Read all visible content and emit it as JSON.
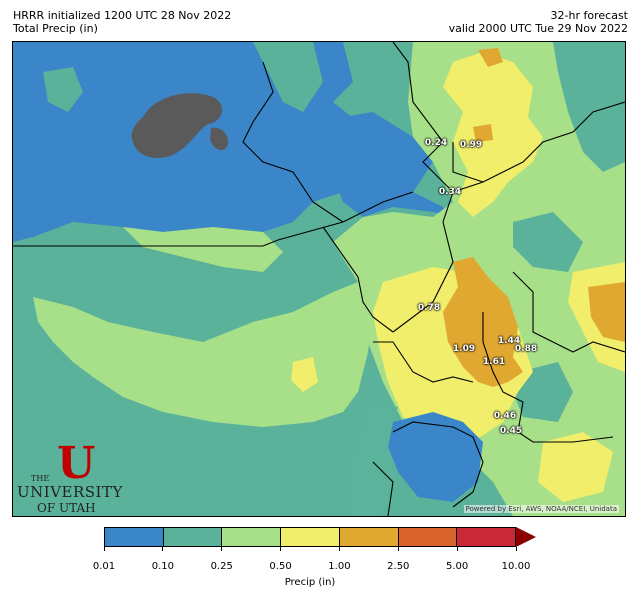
{
  "header": {
    "left_line1": "HRRR initialized 1200 UTC 28 Nov 2022",
    "left_line2": "Total Precip (in)",
    "right_line1": "32-hr forecast",
    "right_line2": "valid 2000 UTC Tue 29 Nov 2022"
  },
  "stations": [
    {
      "label": "0.24"
    },
    {
      "label": "0.99"
    },
    {
      "label": "0.34"
    },
    {
      "label": "0.78"
    },
    {
      "label": "1.09"
    },
    {
      "label": "1.44"
    },
    {
      "label": "0.88"
    },
    {
      "label": "1.61"
    },
    {
      "label": "0.46"
    },
    {
      "label": "0.45"
    }
  ],
  "attribution": "Powered by Esri, AWS, NOAA/NCEI, Unidata",
  "logo": {
    "the": "THE",
    "university": "UNIVERSITY",
    "of_utah": "OF UTAH",
    "mark": "U"
  },
  "colorbar": {
    "label": "Precip (in)",
    "ticks": [
      "0.01",
      "0.10",
      "0.25",
      "0.50",
      "1.00",
      "2.50",
      "5.00",
      "10.00"
    ],
    "colors": [
      "#3a86c8",
      "#5ab29a",
      "#a8e08a",
      "#f0ee6a",
      "#e0a830",
      "#d8642c",
      "#c82838"
    ],
    "extend_color": "#8b0000"
  },
  "palette": {
    "blue": "#3a86c8",
    "teal": "#5ab29a",
    "lightgreen": "#a8e08a",
    "yellow": "#f0ee6a",
    "orange": "#e0a830",
    "gray": "#5a5a5a"
  }
}
